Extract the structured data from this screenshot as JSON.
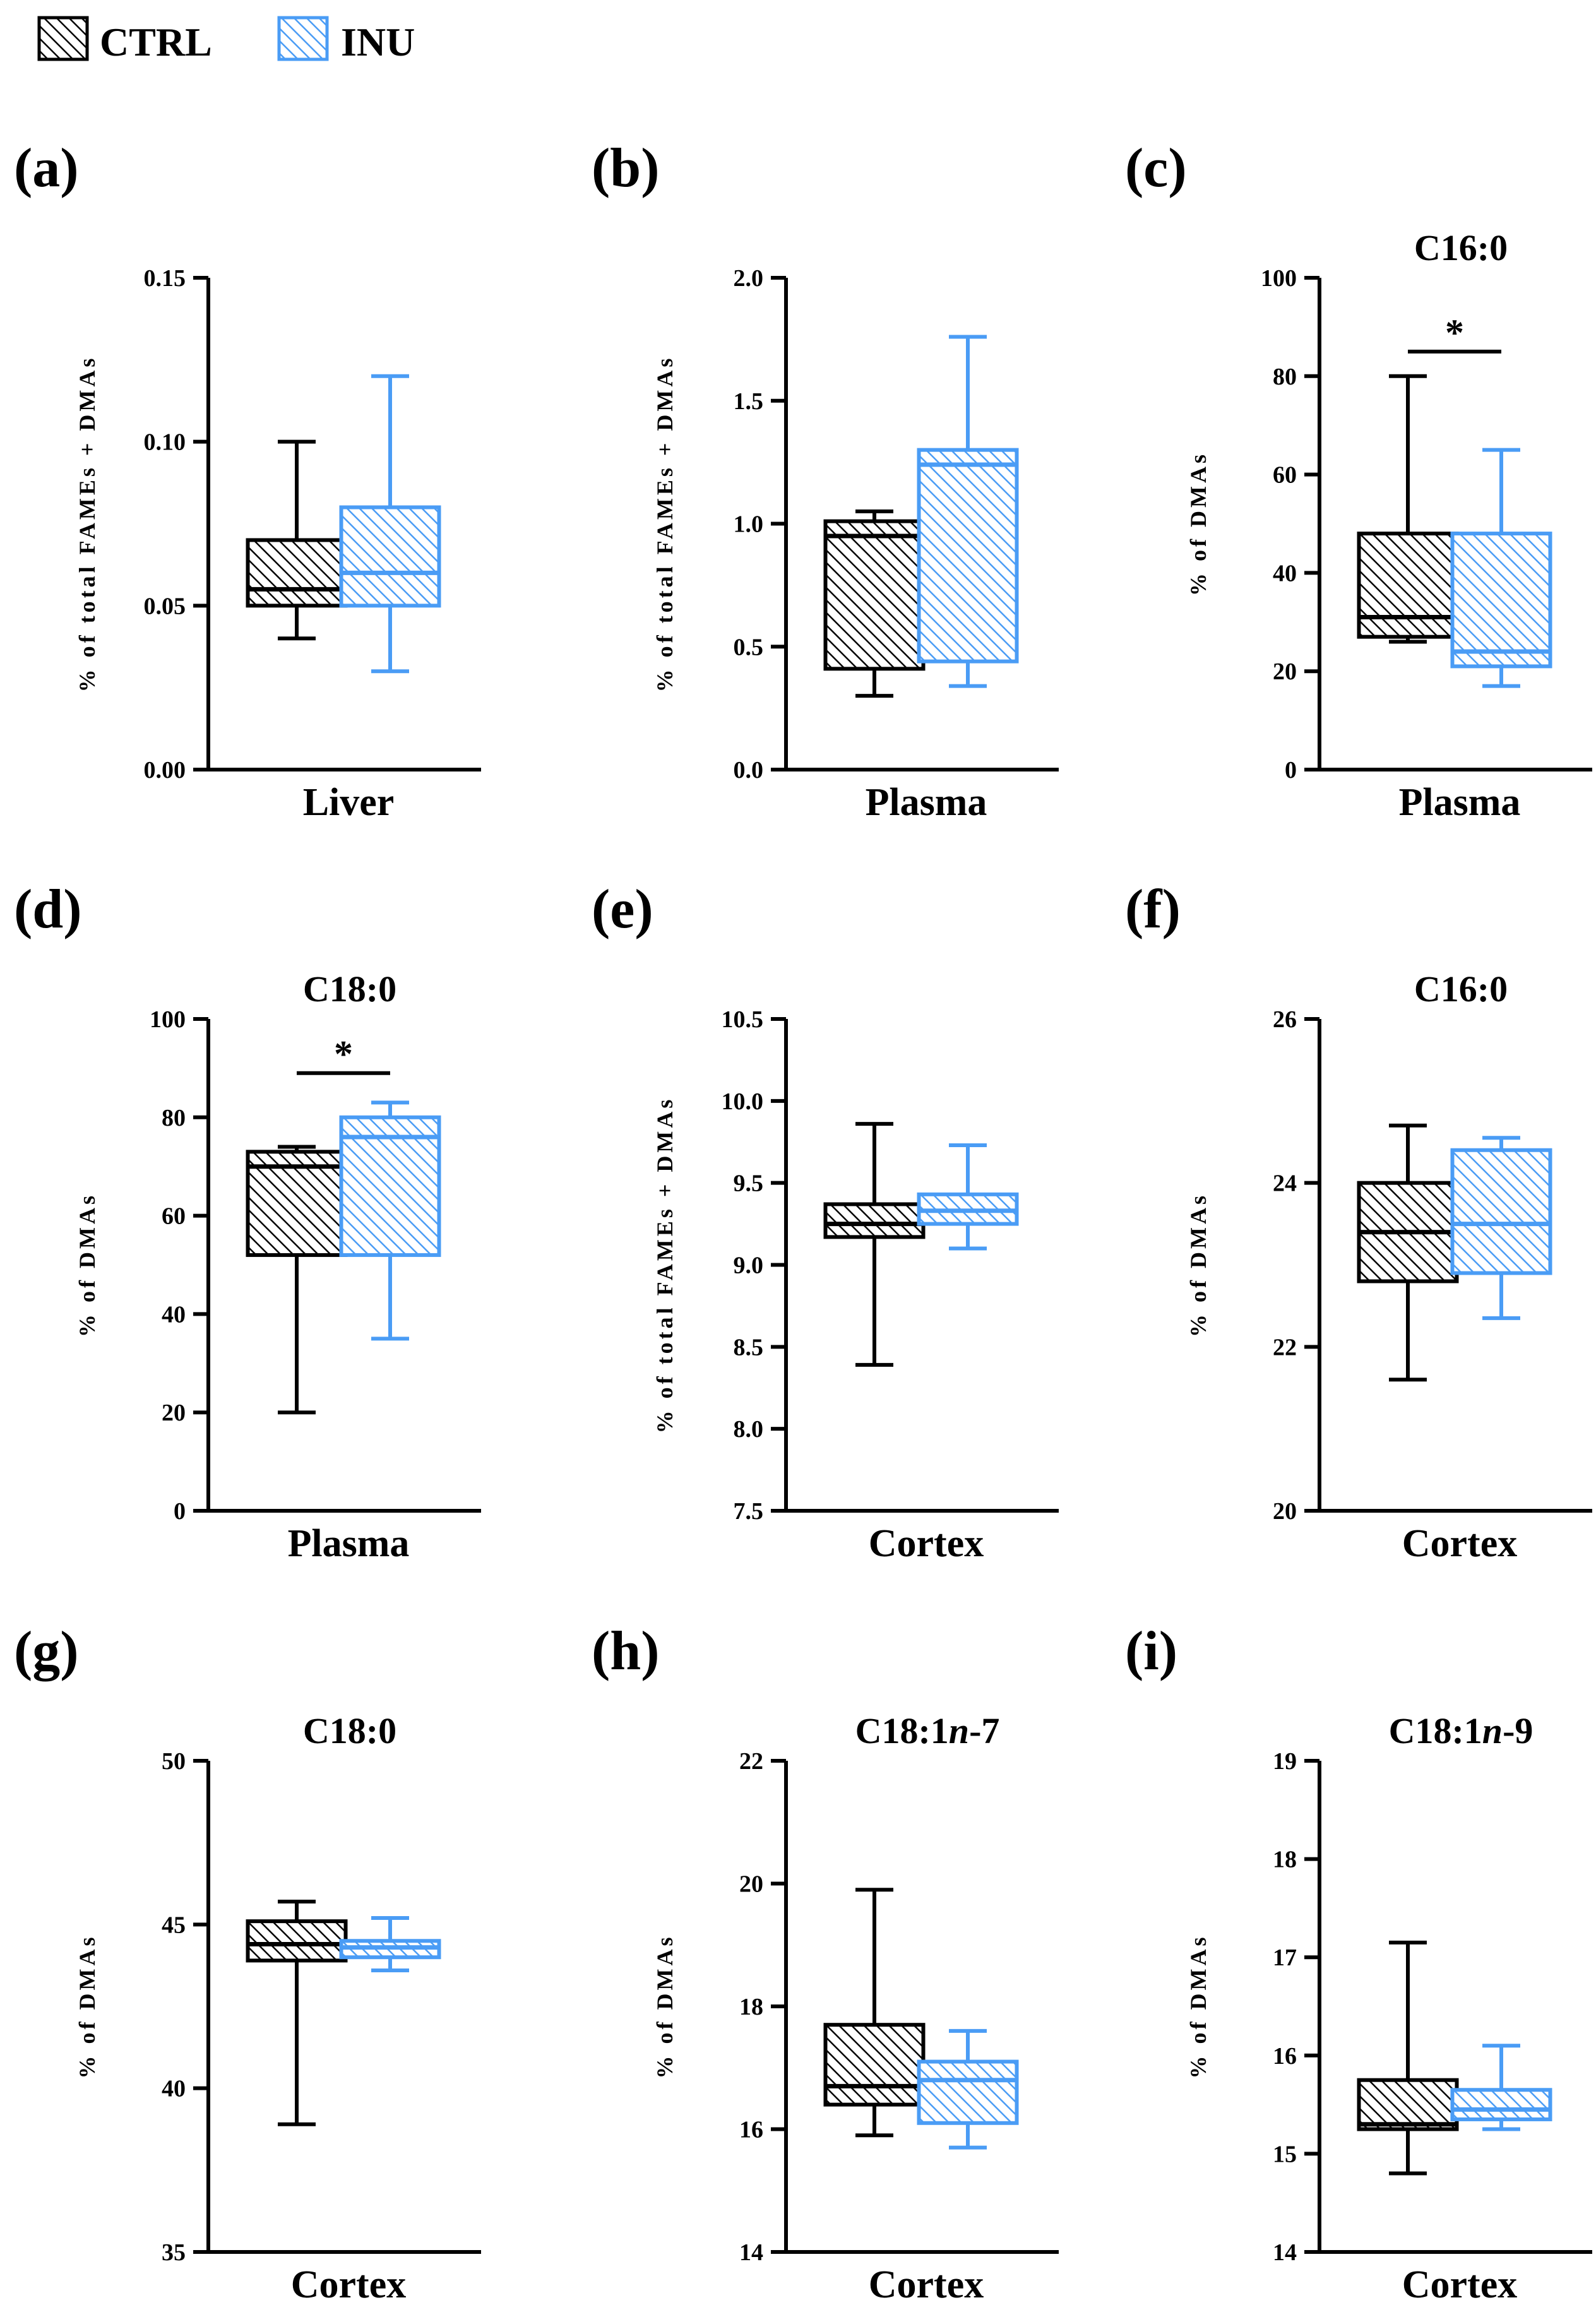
{
  "colors": {
    "ctrl": "#000000",
    "inu": "#4a9cf5",
    "ctrl_fill": "#ffffff",
    "inu_fill": "#ffffff"
  },
  "legend": [
    {
      "key": "ctrl",
      "label": "CTRL"
    },
    {
      "key": "inu",
      "label": "INU"
    }
  ],
  "chart_data": [
    {
      "type": "box",
      "letter": "(a)",
      "title": "",
      "xlabel": "Liver",
      "ylabel": "% of total FAMEs + DMAs",
      "ylim": [
        0,
        0.15
      ],
      "ticks": [
        "0.00",
        "0.05",
        "0.10",
        "0.15"
      ],
      "tick_values": [
        0,
        0.05,
        0.1,
        0.15
      ],
      "series": [
        {
          "name": "CTRL",
          "min": 0.04,
          "q1": 0.05,
          "median": 0.055,
          "q3": 0.07,
          "max": 0.1
        },
        {
          "name": "INU",
          "min": 0.03,
          "q1": 0.05,
          "median": 0.06,
          "q3": 0.08,
          "max": 0.12
        }
      ],
      "significance": null
    },
    {
      "type": "box",
      "letter": "(b)",
      "title": "",
      "xlabel": "Plasma",
      "ylabel": "% of total FAMEs + DMAs",
      "ylim": [
        0,
        2.0
      ],
      "ticks": [
        "0.0",
        "0.5",
        "1.0",
        "1.5",
        "2.0"
      ],
      "tick_values": [
        0,
        0.5,
        1.0,
        1.5,
        2.0
      ],
      "series": [
        {
          "name": "CTRL",
          "min": 0.3,
          "q1": 0.41,
          "median": 0.95,
          "q3": 1.01,
          "max": 1.05
        },
        {
          "name": "INU",
          "min": 0.34,
          "q1": 0.44,
          "median": 1.24,
          "q3": 1.3,
          "max": 1.76
        }
      ],
      "significance": null
    },
    {
      "type": "box",
      "letter": "(c)",
      "title": "C16:0",
      "xlabel": "Plasma",
      "ylabel": "% of DMAs",
      "ylim": [
        0,
        100
      ],
      "ticks": [
        "0",
        "20",
        "40",
        "60",
        "80",
        "100"
      ],
      "tick_values": [
        0,
        20,
        40,
        60,
        80,
        100
      ],
      "series": [
        {
          "name": "CTRL",
          "min": 26,
          "q1": 27,
          "median": 31,
          "q3": 48,
          "max": 80
        },
        {
          "name": "INU",
          "min": 17,
          "q1": 21,
          "median": 24,
          "q3": 48,
          "max": 65
        }
      ],
      "significance": {
        "label": "*",
        "y": 85
      }
    },
    {
      "type": "box",
      "letter": "(d)",
      "title": "C18:0",
      "xlabel": "Plasma",
      "ylabel": "% of DMAs",
      "ylim": [
        0,
        100
      ],
      "ticks": [
        "0",
        "20",
        "40",
        "60",
        "80",
        "100"
      ],
      "tick_values": [
        0,
        20,
        40,
        60,
        80,
        100
      ],
      "series": [
        {
          "name": "CTRL",
          "min": 20,
          "q1": 52,
          "median": 70,
          "q3": 73,
          "max": 74
        },
        {
          "name": "INU",
          "min": 35,
          "q1": 52,
          "median": 76,
          "q3": 80,
          "max": 83
        }
      ],
      "significance": {
        "label": "*",
        "y": 89
      }
    },
    {
      "type": "box",
      "letter": "(e)",
      "title": "",
      "xlabel": "Cortex",
      "ylabel": "% of total FAMEs + DMAs",
      "ylim": [
        7.5,
        10.5
      ],
      "ticks": [
        "7.5",
        "8.0",
        "8.5",
        "9.0",
        "9.5",
        "10.0",
        "10.5"
      ],
      "tick_values": [
        7.5,
        8.0,
        8.5,
        9.0,
        9.5,
        10.0,
        10.5
      ],
      "series": [
        {
          "name": "CTRL",
          "min": 8.39,
          "q1": 9.17,
          "median": 9.25,
          "q3": 9.37,
          "max": 9.86
        },
        {
          "name": "INU",
          "min": 9.1,
          "q1": 9.25,
          "median": 9.33,
          "q3": 9.43,
          "max": 9.73
        }
      ],
      "significance": null
    },
    {
      "type": "box",
      "letter": "(f)",
      "title": "C16:0",
      "xlabel": "Cortex",
      "ylabel": "% of DMAs",
      "ylim": [
        20,
        26
      ],
      "ticks": [
        "20",
        "22",
        "24",
        "26"
      ],
      "tick_values": [
        20,
        22,
        24,
        26
      ],
      "series": [
        {
          "name": "CTRL",
          "min": 21.6,
          "q1": 22.8,
          "median": 23.4,
          "q3": 24.0,
          "max": 24.7
        },
        {
          "name": "INU",
          "min": 22.35,
          "q1": 22.9,
          "median": 23.5,
          "q3": 24.4,
          "max": 24.55
        }
      ],
      "significance": null
    },
    {
      "type": "box",
      "letter": "(g)",
      "title": "C18:0",
      "xlabel": "Cortex",
      "ylabel": "% of DMAs",
      "ylim": [
        35,
        50
      ],
      "ticks": [
        "35",
        "40",
        "45",
        "50"
      ],
      "tick_values": [
        35,
        40,
        45,
        50
      ],
      "series": [
        {
          "name": "CTRL",
          "min": 38.9,
          "q1": 43.9,
          "median": 44.4,
          "q3": 45.1,
          "max": 45.7
        },
        {
          "name": "INU",
          "min": 43.6,
          "q1": 44.0,
          "median": 44.3,
          "q3": 44.5,
          "max": 45.2
        }
      ],
      "significance": null
    },
    {
      "type": "box",
      "letter": "(h)",
      "title": "C18:1n-7",
      "title_parts": [
        "C18:1",
        "n",
        "-7"
      ],
      "xlabel": "Cortex",
      "ylabel": "% of DMAs",
      "ylim": [
        14,
        22
      ],
      "ticks": [
        "14",
        "16",
        "18",
        "20",
        "22"
      ],
      "tick_values": [
        14,
        16,
        18,
        20,
        22
      ],
      "series": [
        {
          "name": "CTRL",
          "min": 15.9,
          "q1": 16.4,
          "median": 16.7,
          "q3": 17.7,
          "max": 19.9
        },
        {
          "name": "INU",
          "min": 15.7,
          "q1": 16.1,
          "median": 16.8,
          "q3": 17.1,
          "max": 17.6
        }
      ],
      "significance": null
    },
    {
      "type": "box",
      "letter": "(i)",
      "title": "C18:1n-9",
      "title_parts": [
        "C18:1",
        "n",
        "-9"
      ],
      "xlabel": "Cortex",
      "ylabel": "% of DMAs",
      "ylim": [
        14,
        19
      ],
      "ticks": [
        "14",
        "15",
        "16",
        "17",
        "18",
        "19"
      ],
      "tick_values": [
        14,
        15,
        16,
        17,
        18,
        19
      ],
      "series": [
        {
          "name": "CTRL",
          "min": 14.8,
          "q1": 15.25,
          "median": 15.3,
          "q3": 15.75,
          "max": 17.15
        },
        {
          "name": "INU",
          "min": 15.25,
          "q1": 15.35,
          "median": 15.45,
          "q3": 15.65,
          "max": 16.1
        }
      ],
      "significance": null
    }
  ]
}
